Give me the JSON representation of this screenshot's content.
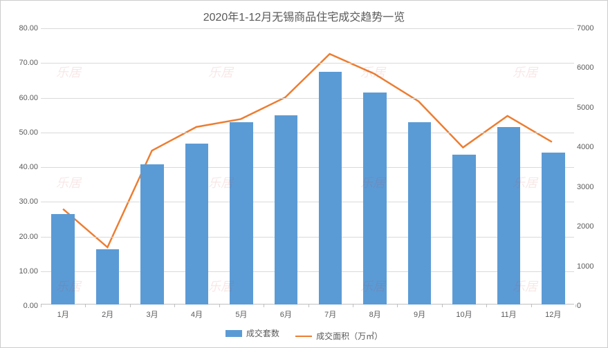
{
  "chart": {
    "type": "bar+line",
    "title": "2020年1-12月无锡商品住宅成交趋势一览",
    "title_fontsize": 16,
    "title_color": "#595959",
    "background_color": "#ffffff",
    "grid_color": "#d9d9d9",
    "axis_color": "#bfbfbf",
    "label_fontsize": 11,
    "label_color": "#595959",
    "categories": [
      "1月",
      "2月",
      "3月",
      "4月",
      "5月",
      "6月",
      "7月",
      "8月",
      "9月",
      "10月",
      "11月",
      "12月"
    ],
    "y_left": {
      "min": 0,
      "max": 80,
      "step": 10,
      "decimals": 2
    },
    "y_right": {
      "min": 0,
      "max": 7000,
      "step": 1000,
      "decimals": 0
    },
    "bars": {
      "label": "成交套数",
      "color": "#5b9bd5",
      "width_ratio": 0.52,
      "axis": "left",
      "values": [
        26.0,
        16.0,
        40.5,
        46.3,
        52.5,
        54.5,
        67.0,
        61.0,
        52.5,
        43.2,
        51.2,
        43.8
      ]
    },
    "line": {
      "label": "成交面积（万㎡）",
      "color": "#ed7d31",
      "width": 2.5,
      "axis": "right",
      "values": [
        2420,
        1450,
        3900,
        4500,
        4700,
        5250,
        6350,
        5850,
        5150,
        3980,
        4780,
        4120
      ]
    },
    "watermark_text": "乐居"
  }
}
